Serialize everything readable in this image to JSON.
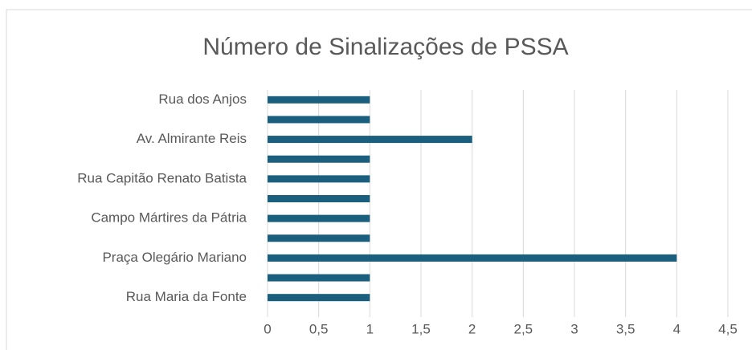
{
  "chart_data": {
    "type": "barh",
    "title": "Número de Sinalizações de PSSA",
    "categories": [
      "Rua dos Anjos",
      null,
      "Av. Almirante Reis",
      null,
      "Rua Capitão Renato Batista",
      null,
      "Campo Mártires da Pátria",
      null,
      "Praça Olegário Mariano",
      null,
      "Rua Maria da Fonte"
    ],
    "values": [
      1,
      1,
      2,
      1,
      1,
      1,
      1,
      1,
      4,
      1,
      1
    ],
    "color": "#1b5f7f",
    "xlim": [
      0,
      4.5
    ],
    "xticks": [
      0,
      {
        "value": 0.5,
        "label": "0,5"
      },
      1,
      {
        "value": 1.5,
        "label": "1,5"
      },
      2,
      {
        "value": 2.5,
        "label": "2,5"
      },
      3,
      {
        "value": 3.5,
        "label": "3,5"
      },
      4,
      {
        "value": 4.5,
        "label": "4,5"
      }
    ],
    "grid": true
  }
}
